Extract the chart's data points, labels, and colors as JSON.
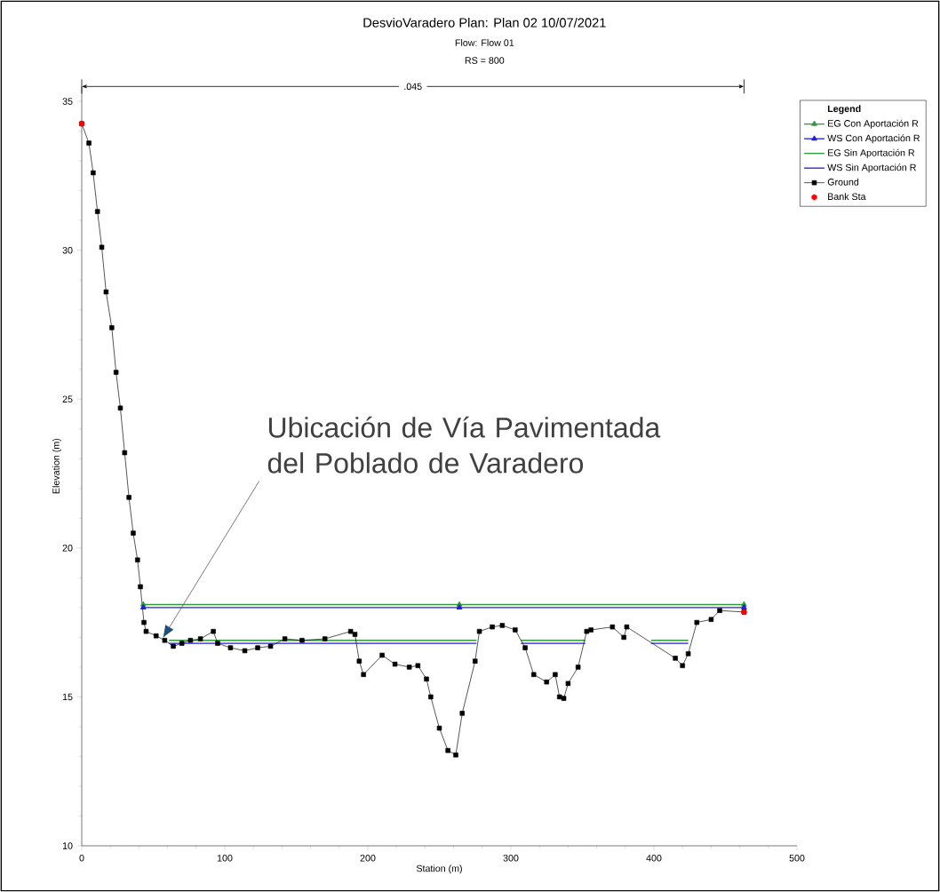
{
  "chart_data": {
    "type": "line",
    "title": "DesvioVaradero     Plan: Plan 02     10/07/2021",
    "subtitle": "Flow: Flow 01",
    "xlabel": "Station (m)",
    "ylabel": "Elevation (m)",
    "xlim": [
      0,
      500
    ],
    "ylim": [
      10,
      35.5
    ],
    "xticks": [
      0,
      100,
      200,
      300,
      400,
      500
    ],
    "yticks": [
      10,
      15,
      20,
      25,
      30,
      35
    ],
    "legend": "right",
    "legend_title": "Legend",
    "grid": false,
    "annotations": [
      "RS = 800",
      {
        "text": ".045",
        "x": 231.5,
        "y": 35.5
      },
      {
        "text": "Ubicación de Vía Pavimentada del Poblado de Varadero",
        "x": 57,
        "y": 17.0
      }
    ],
    "series": [
      {
        "name": "EG Con Aportación R",
        "color": "#2e9a3a",
        "marker": "triangle",
        "x": [
          43,
          264,
          463
        ],
        "values": [
          18.1,
          18.1,
          18.1
        ]
      },
      {
        "name": "WS Con Aportación R",
        "color": "#2020e0",
        "marker": "triangle",
        "x": [
          43,
          264,
          463
        ],
        "values": [
          18.0,
          18.0,
          18.0
        ]
      },
      {
        "name": "EG Sin Aportación R",
        "color": "#2e9a3a",
        "marker": "none",
        "x": [
          61,
          276,
          290,
          307,
          352,
          380,
          398,
          424
        ],
        "values": [
          16.9,
          16.9,
          null,
          16.9,
          16.9,
          null,
          16.9,
          16.9
        ]
      },
      {
        "name": "WS Sin Aportación R",
        "color": "#2020e0",
        "marker": "none",
        "x": [
          61,
          276,
          290,
          307,
          352,
          380,
          398,
          424
        ],
        "values": [
          16.8,
          16.8,
          null,
          16.8,
          16.8,
          null,
          16.8,
          16.8
        ]
      },
      {
        "name": "Ground",
        "color": "#000000",
        "marker": "square",
        "x": [
          0,
          5,
          8,
          11,
          14,
          17,
          21,
          24,
          27,
          30,
          33,
          36,
          39,
          41,
          43.5,
          45,
          52,
          58,
          64,
          70,
          76,
          83,
          92,
          95,
          104,
          114,
          123,
          132,
          142,
          154,
          170,
          188,
          191,
          194,
          197,
          210,
          219,
          229,
          235,
          241,
          244,
          250,
          256,
          261.5,
          266,
          275,
          278,
          287,
          294,
          303,
          310,
          316,
          325,
          331,
          334,
          337,
          340,
          347,
          353,
          356,
          371,
          379,
          381,
          415,
          420,
          424,
          430,
          440,
          446,
          463
        ],
        "values": [
          34.25,
          33.6,
          32.6,
          31.3,
          30.1,
          28.6,
          27.4,
          25.9,
          24.7,
          23.2,
          21.7,
          20.5,
          19.6,
          18.7,
          17.5,
          17.2,
          17.05,
          16.9,
          16.7,
          16.8,
          16.9,
          16.95,
          17.2,
          16.8,
          16.65,
          16.55,
          16.65,
          16.7,
          16.95,
          16.9,
          16.95,
          17.2,
          17.1,
          16.2,
          15.75,
          16.4,
          16.1,
          16.0,
          16.05,
          15.6,
          15.0,
          13.95,
          13.2,
          13.05,
          14.45,
          16.2,
          17.2,
          17.35,
          17.4,
          17.25,
          16.65,
          15.75,
          15.5,
          15.75,
          15.0,
          14.95,
          15.45,
          16.0,
          17.2,
          17.25,
          17.35,
          17.0,
          17.35,
          16.3,
          16.05,
          16.45,
          17.5,
          17.6,
          17.9,
          17.85
        ]
      },
      {
        "name": "Bank Sta",
        "type": "scatter",
        "color": "#ff0000",
        "marker": "circle",
        "x": [
          0,
          463
        ],
        "values": [
          34.25,
          17.85
        ]
      }
    ]
  }
}
